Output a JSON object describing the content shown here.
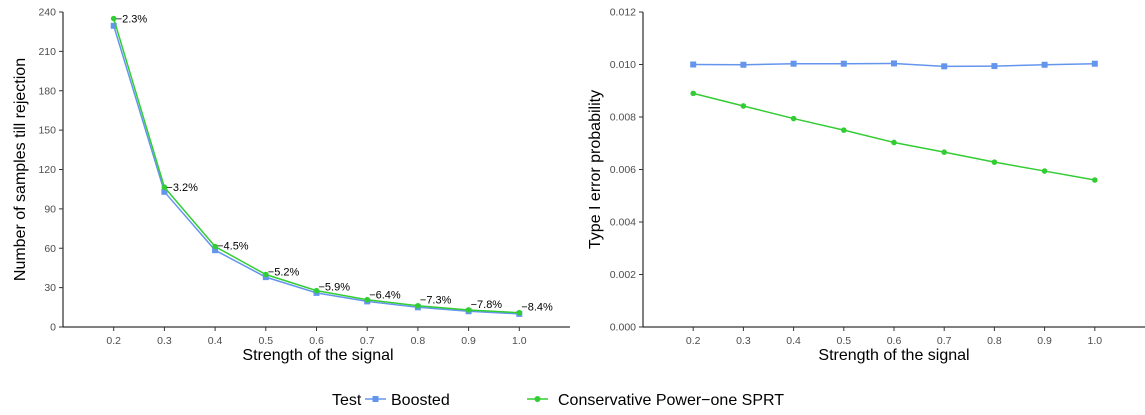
{
  "chart_data": [
    {
      "type": "line",
      "xlabel": "Strength of the signal",
      "ylabel": "Number of samples till rejection",
      "x": [
        0.2,
        0.3,
        0.4,
        0.5,
        0.6,
        0.7,
        0.8,
        0.9,
        1.0
      ],
      "x_tick_labels": [
        "0.2",
        "0.3",
        "0.4",
        "0.5",
        "0.6",
        "0.7",
        "0.8",
        "0.9",
        "1.0"
      ],
      "xlim": [
        0.1,
        1.1
      ],
      "ylim": [
        0,
        240
      ],
      "y_ticks": [
        0,
        30,
        60,
        90,
        120,
        150,
        180,
        210,
        240
      ],
      "y_tick_labels": [
        "0",
        "30",
        "60",
        "90",
        "120",
        "150",
        "180",
        "210",
        "240"
      ],
      "grid": false,
      "series": [
        {
          "name": "Boosted",
          "color": "#6495ED",
          "marker": "square",
          "values": [
            229.5,
            103,
            58.5,
            38,
            26,
            19.5,
            15,
            12,
            10
          ]
        },
        {
          "name": "Conservative Power−one SPRT",
          "color": "#32CD32",
          "marker": "circle",
          "values": [
            235,
            106.5,
            61.3,
            40,
            27.7,
            20.8,
            16.2,
            13,
            10.9
          ]
        }
      ],
      "annotations": [
        "−2.3%",
        "−3.2%",
        "−4.5%",
        "−5.2%",
        "−5.9%",
        "−6.4%",
        "−7.3%",
        "−7.8%",
        "−8.4%"
      ]
    },
    {
      "type": "line",
      "xlabel": "Strength of the signal",
      "ylabel": "Type I error probability",
      "x": [
        0.2,
        0.3,
        0.4,
        0.5,
        0.6,
        0.7,
        0.8,
        0.9,
        1.0
      ],
      "x_tick_labels": [
        "0.2",
        "0.3",
        "0.4",
        "0.5",
        "0.6",
        "0.7",
        "0.8",
        "0.9",
        "1.0"
      ],
      "xlim": [
        0.1,
        1.1
      ],
      "ylim": [
        0,
        0.012
      ],
      "y_ticks": [
        0,
        0.002,
        0.004,
        0.006,
        0.008,
        0.01,
        0.012
      ],
      "y_tick_labels": [
        "0.000",
        "0.002",
        "0.004",
        "0.006",
        "0.008",
        "0.010",
        "0.012"
      ],
      "grid": false,
      "series": [
        {
          "name": "Boosted",
          "color": "#6495ED",
          "marker": "square",
          "values": [
            0.01,
            0.00999,
            0.01003,
            0.01003,
            0.01004,
            0.00993,
            0.00994,
            0.00999,
            0.01003
          ]
        },
        {
          "name": "Conservative Power−one SPRT",
          "color": "#32CD32",
          "marker": "circle",
          "values": [
            0.0089,
            0.00842,
            0.00794,
            0.0075,
            0.00703,
            0.00666,
            0.00628,
            0.00594,
            0.0056
          ]
        }
      ]
    }
  ],
  "legend": {
    "title": "Test",
    "placement": "bottom",
    "items": [
      "Boosted",
      "Conservative Power−one SPRT"
    ]
  }
}
